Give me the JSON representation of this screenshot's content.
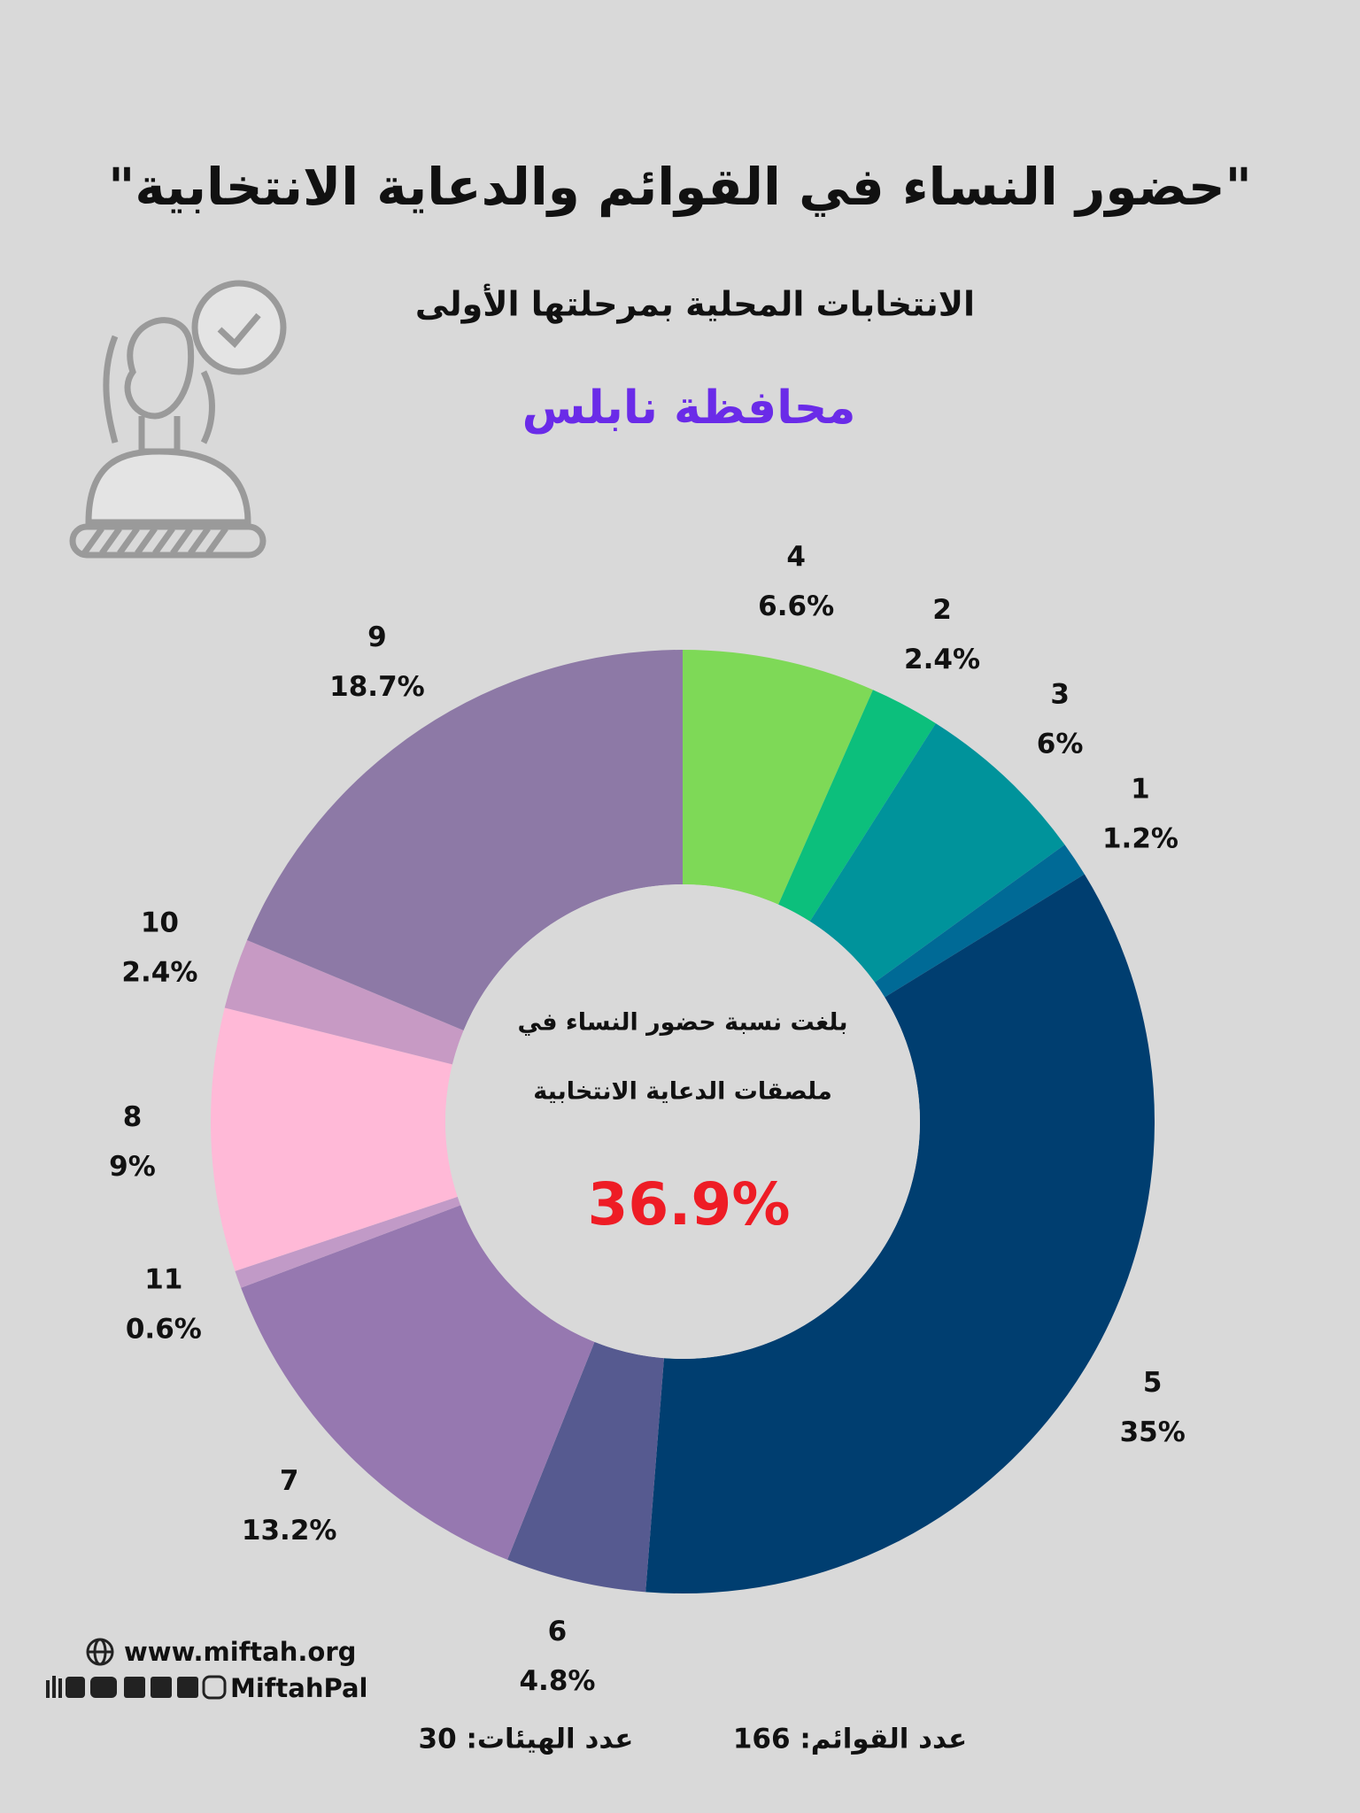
{
  "header": {
    "title": "\"حضور النساء في القوائم والدعاية الانتخابية\"",
    "subtitle": "الانتخابات المحلية بمرحلتها الأولى",
    "region": "محافظة نابلس"
  },
  "chart_data": {
    "type": "donut",
    "categories": [
      "4",
      "2",
      "3",
      "1",
      "5",
      "6",
      "7",
      "11",
      "8",
      "10",
      "9"
    ],
    "values": [
      6.6,
      2.4,
      6,
      1.2,
      35,
      4.8,
      13.2,
      0.6,
      9,
      2.4,
      18.7
    ],
    "value_labels": [
      "6.6%",
      "2.4%",
      "6%",
      "1.2%",
      "35%",
      "4.8%",
      "13.2%",
      "0.6%",
      "9%",
      "2.4%",
      "18.7%"
    ],
    "colors": [
      "#7ed957",
      "#0cbf7c",
      "#00939b",
      "#006a96",
      "#003e70",
      "#565a90",
      "#9678b0",
      "#c19ac7",
      "#ffb9d7",
      "#c79ac4",
      "#8d79a6"
    ],
    "center_text": [
      "بلغت نسبة حضور النساء في",
      "ملصقات الدعاية الانتخابية"
    ],
    "center_note": "36.9%"
  },
  "footer": {
    "website": "www.miftah.org",
    "handle": "MiftahPal",
    "lists_count": "عدد القوائم: 166",
    "bodies_count": "عدد الهيئات: 30"
  }
}
